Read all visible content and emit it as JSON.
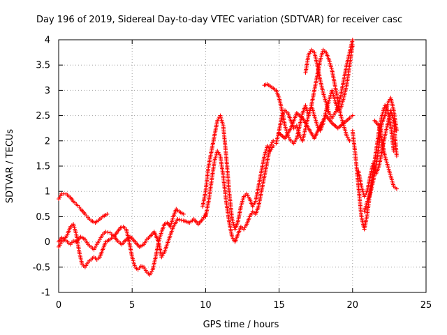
{
  "chart_data": {
    "type": "scatter",
    "title": "Day 196 of 2019, Sidereal Day-to-day VTEC variation (SDTVAR) for receiver casc",
    "xlabel": "GPS time / hours",
    "ylabel": "SDTVAR / TECUs",
    "xlim": [
      0,
      25
    ],
    "ylim": [
      -1,
      4
    ],
    "x_ticks": [
      0,
      5,
      10,
      15,
      20,
      25
    ],
    "y_ticks": [
      -1,
      -0.5,
      0,
      0.5,
      1,
      1.5,
      2,
      2.5,
      3,
      3.5,
      4
    ],
    "x_tick_labels": [
      "0",
      "5",
      "10",
      "15",
      "20",
      "25"
    ],
    "y_tick_labels": [
      "-1",
      "-0.5",
      "0",
      "0.5",
      "1",
      "1.5",
      "2",
      "2.5",
      "3",
      "3.5",
      "4"
    ],
    "grid": true,
    "marker": "plus",
    "color": "#ff0000",
    "series": [
      {
        "values": [
          [
            0.0,
            0.85
          ],
          [
            0.2,
            0.95
          ],
          [
            0.5,
            0.95
          ],
          [
            0.8,
            0.88
          ],
          [
            1.0,
            0.8
          ],
          [
            1.3,
            0.72
          ],
          [
            1.5,
            0.65
          ],
          [
            1.8,
            0.55
          ],
          [
            2.0,
            0.48
          ],
          [
            2.2,
            0.42
          ],
          [
            2.5,
            0.38
          ],
          [
            2.8,
            0.45
          ],
          [
            3.0,
            0.5
          ],
          [
            3.3,
            0.55
          ]
        ]
      },
      {
        "values": [
          [
            0.0,
            0.0
          ],
          [
            0.2,
            0.08
          ],
          [
            0.4,
            0.05
          ],
          [
            0.6,
            0.15
          ],
          [
            0.8,
            0.3
          ],
          [
            1.0,
            0.35
          ],
          [
            1.2,
            0.15
          ],
          [
            1.4,
            -0.2
          ],
          [
            1.6,
            -0.45
          ],
          [
            1.8,
            -0.5
          ],
          [
            2.0,
            -0.4
          ],
          [
            2.2,
            -0.35
          ],
          [
            2.4,
            -0.3
          ],
          [
            2.6,
            -0.35
          ],
          [
            2.8,
            -0.3
          ],
          [
            3.0,
            -0.15
          ],
          [
            3.2,
            0.0
          ],
          [
            3.5,
            0.05
          ],
          [
            3.8,
            0.12
          ],
          [
            4.0,
            0.2
          ],
          [
            4.2,
            0.28
          ],
          [
            4.4,
            0.3
          ],
          [
            4.6,
            0.25
          ],
          [
            4.8,
            0.0
          ],
          [
            5.0,
            -0.3
          ],
          [
            5.2,
            -0.5
          ],
          [
            5.4,
            -0.55
          ],
          [
            5.6,
            -0.48
          ],
          [
            5.8,
            -0.5
          ],
          [
            6.0,
            -0.6
          ],
          [
            6.2,
            -0.65
          ],
          [
            6.4,
            -0.55
          ],
          [
            6.6,
            -0.3
          ],
          [
            6.8,
            0.0
          ],
          [
            7.0,
            0.2
          ],
          [
            7.2,
            0.35
          ],
          [
            7.4,
            0.38
          ],
          [
            7.6,
            0.3
          ],
          [
            7.8,
            0.5
          ],
          [
            8.0,
            0.65
          ],
          [
            8.2,
            0.6
          ],
          [
            8.5,
            0.55
          ]
        ]
      },
      {
        "values": [
          [
            0.0,
            -0.1
          ],
          [
            0.2,
            0.0
          ],
          [
            0.4,
            0.05
          ],
          [
            0.6,
            0.0
          ],
          [
            0.8,
            -0.05
          ],
          [
            1.0,
            0.02
          ],
          [
            1.2,
            0.0
          ],
          [
            1.5,
            0.1
          ],
          [
            1.8,
            0.05
          ],
          [
            2.0,
            -0.05
          ],
          [
            2.2,
            -0.1
          ],
          [
            2.4,
            -0.15
          ],
          [
            2.6,
            -0.05
          ],
          [
            2.8,
            0.05
          ],
          [
            3.0,
            0.15
          ],
          [
            3.2,
            0.2
          ],
          [
            3.5,
            0.18
          ],
          [
            3.8,
            0.1
          ],
          [
            4.0,
            0.02
          ],
          [
            4.3,
            -0.05
          ],
          [
            4.6,
            0.05
          ],
          [
            4.9,
            0.1
          ],
          [
            5.2,
            0.0
          ],
          [
            5.5,
            -0.1
          ],
          [
            5.8,
            -0.05
          ],
          [
            6.0,
            0.05
          ],
          [
            6.2,
            0.1
          ],
          [
            6.5,
            0.2
          ],
          [
            6.8,
            0.0
          ],
          [
            7.0,
            -0.3
          ],
          [
            7.2,
            -0.2
          ],
          [
            7.5,
            0.05
          ],
          [
            7.8,
            0.3
          ],
          [
            8.1,
            0.45
          ],
          [
            8.5,
            0.42
          ],
          [
            8.9,
            0.38
          ],
          [
            9.2,
            0.45
          ],
          [
            9.5,
            0.35
          ],
          [
            9.8,
            0.45
          ],
          [
            10.0,
            0.55
          ]
        ]
      },
      {
        "values": [
          [
            10.0,
            0.5
          ],
          [
            10.2,
            0.8
          ],
          [
            10.4,
            1.2
          ],
          [
            10.6,
            1.6
          ],
          [
            10.8,
            1.8
          ],
          [
            11.0,
            1.7
          ],
          [
            11.2,
            1.3
          ],
          [
            11.4,
            0.8
          ],
          [
            11.6,
            0.4
          ],
          [
            11.8,
            0.1
          ],
          [
            12.0,
            0.0
          ],
          [
            12.2,
            0.15
          ],
          [
            12.4,
            0.3
          ],
          [
            12.6,
            0.25
          ],
          [
            12.8,
            0.35
          ],
          [
            13.0,
            0.5
          ],
          [
            13.2,
            0.6
          ],
          [
            13.4,
            0.55
          ],
          [
            13.6,
            0.7
          ],
          [
            13.8,
            1.0
          ],
          [
            14.0,
            1.3
          ],
          [
            14.2,
            1.6
          ],
          [
            14.4,
            1.9
          ],
          [
            14.6,
            2.0
          ]
        ]
      },
      {
        "values": [
          [
            9.8,
            0.7
          ],
          [
            10.0,
            1.0
          ],
          [
            10.2,
            1.5
          ],
          [
            10.4,
            1.8
          ],
          [
            10.6,
            2.1
          ],
          [
            10.8,
            2.4
          ],
          [
            11.0,
            2.5
          ],
          [
            11.2,
            2.3
          ],
          [
            11.4,
            1.7
          ],
          [
            11.6,
            1.0
          ],
          [
            11.8,
            0.45
          ],
          [
            12.0,
            0.25
          ],
          [
            12.2,
            0.4
          ],
          [
            12.4,
            0.7
          ],
          [
            12.6,
            0.9
          ],
          [
            12.8,
            0.95
          ],
          [
            13.0,
            0.85
          ],
          [
            13.2,
            0.7
          ],
          [
            13.4,
            0.8
          ],
          [
            13.6,
            1.1
          ],
          [
            13.8,
            1.4
          ],
          [
            14.0,
            1.7
          ],
          [
            14.2,
            1.9
          ],
          [
            14.4,
            1.8
          ],
          [
            14.6,
            1.9
          ]
        ]
      },
      {
        "values": [
          [
            14.0,
            3.1
          ],
          [
            14.2,
            3.12
          ],
          [
            14.4,
            3.08
          ],
          [
            14.8,
            3.0
          ],
          [
            15.0,
            2.85
          ],
          [
            15.2,
            2.6
          ],
          [
            15.4,
            2.3
          ],
          [
            15.6,
            2.1
          ],
          [
            15.8,
            2.0
          ],
          [
            16.0,
            1.95
          ],
          [
            16.2,
            2.05
          ],
          [
            16.4,
            2.3
          ],
          [
            16.6,
            2.55
          ],
          [
            16.8,
            2.7
          ],
          [
            17.0,
            2.5
          ],
          [
            17.2,
            2.7
          ],
          [
            17.4,
            3.0
          ],
          [
            17.6,
            3.3
          ],
          [
            17.8,
            3.6
          ],
          [
            18.0,
            3.8
          ],
          [
            18.2,
            3.75
          ],
          [
            18.4,
            3.6
          ],
          [
            18.6,
            3.4
          ],
          [
            18.8,
            3.1
          ],
          [
            19.0,
            2.8
          ],
          [
            19.2,
            2.5
          ],
          [
            19.4,
            2.3
          ],
          [
            19.6,
            2.1
          ],
          [
            19.8,
            2.0
          ]
        ]
      },
      {
        "values": [
          [
            14.8,
            1.95
          ],
          [
            15.0,
            2.2
          ],
          [
            15.2,
            2.5
          ],
          [
            15.4,
            2.6
          ],
          [
            15.6,
            2.55
          ],
          [
            15.8,
            2.4
          ],
          [
            16.0,
            2.25
          ],
          [
            16.2,
            2.3
          ],
          [
            16.4,
            2.1
          ],
          [
            16.6,
            2.0
          ],
          [
            16.8,
            2.25
          ],
          [
            17.0,
            2.5
          ],
          [
            17.2,
            2.7
          ],
          [
            17.4,
            2.5
          ],
          [
            17.6,
            2.3
          ],
          [
            17.8,
            2.2
          ],
          [
            18.0,
            2.35
          ],
          [
            18.2,
            2.6
          ],
          [
            18.4,
            2.8
          ],
          [
            18.6,
            3.0
          ],
          [
            18.8,
            2.8
          ],
          [
            19.0,
            2.6
          ],
          [
            19.2,
            2.65
          ],
          [
            19.4,
            2.85
          ],
          [
            19.6,
            3.1
          ],
          [
            19.8,
            3.5
          ],
          [
            20.0,
            3.9
          ]
        ]
      },
      {
        "values": [
          [
            16.8,
            3.35
          ],
          [
            17.0,
            3.7
          ],
          [
            17.2,
            3.8
          ],
          [
            17.4,
            3.75
          ],
          [
            17.6,
            3.5
          ],
          [
            17.8,
            3.2
          ],
          [
            18.0,
            2.95
          ],
          [
            18.2,
            2.75
          ],
          [
            18.4,
            2.55
          ],
          [
            18.6,
            2.45
          ],
          [
            18.8,
            2.55
          ],
          [
            19.0,
            2.65
          ],
          [
            19.2,
            2.9
          ],
          [
            19.4,
            3.2
          ],
          [
            19.6,
            3.5
          ],
          [
            19.8,
            3.75
          ],
          [
            20.0,
            4.0
          ]
        ]
      },
      {
        "values": [
          [
            15.0,
            2.15
          ],
          [
            15.4,
            2.05
          ],
          [
            15.8,
            2.25
          ],
          [
            16.2,
            2.55
          ],
          [
            16.6,
            2.45
          ],
          [
            17.0,
            2.25
          ],
          [
            17.4,
            2.05
          ],
          [
            17.8,
            2.3
          ],
          [
            18.2,
            2.5
          ],
          [
            18.6,
            2.35
          ],
          [
            19.0,
            2.25
          ],
          [
            19.4,
            2.35
          ],
          [
            19.8,
            2.45
          ],
          [
            20.0,
            2.5
          ]
        ]
      },
      {
        "values": [
          [
            20.0,
            2.2
          ],
          [
            20.2,
            1.7
          ],
          [
            20.4,
            1.1
          ],
          [
            20.6,
            0.5
          ],
          [
            20.8,
            0.25
          ],
          [
            21.0,
            0.55
          ],
          [
            21.2,
            1.0
          ],
          [
            21.4,
            1.4
          ],
          [
            21.6,
            1.8
          ],
          [
            21.8,
            2.2
          ],
          [
            22.0,
            2.5
          ],
          [
            22.2,
            2.7
          ],
          [
            22.4,
            2.6
          ],
          [
            22.6,
            2.3
          ],
          [
            22.8,
            1.8
          ]
        ]
      },
      {
        "values": [
          [
            20.4,
            1.4
          ],
          [
            20.6,
            1.1
          ],
          [
            20.8,
            0.9
          ],
          [
            21.0,
            1.0
          ],
          [
            21.2,
            1.3
          ],
          [
            21.4,
            1.55
          ],
          [
            21.6,
            1.35
          ],
          [
            21.8,
            1.5
          ],
          [
            22.0,
            1.8
          ],
          [
            22.2,
            2.1
          ],
          [
            22.4,
            2.35
          ],
          [
            22.6,
            2.6
          ],
          [
            22.8,
            2.4
          ],
          [
            23.0,
            1.7
          ]
        ]
      },
      {
        "values": [
          [
            21.5,
            2.4
          ],
          [
            21.8,
            2.3
          ],
          [
            22.0,
            2.0
          ],
          [
            22.2,
            1.7
          ],
          [
            22.4,
            1.5
          ],
          [
            22.6,
            1.3
          ],
          [
            22.8,
            1.1
          ],
          [
            23.0,
            1.05
          ]
        ]
      },
      {
        "values": [
          [
            20.8,
            0.6
          ],
          [
            21.0,
            0.8
          ],
          [
            21.2,
            0.95
          ],
          [
            21.4,
            1.2
          ],
          [
            21.6,
            1.5
          ],
          [
            21.8,
            1.9
          ],
          [
            22.0,
            2.35
          ],
          [
            22.2,
            2.5
          ],
          [
            22.4,
            2.75
          ],
          [
            22.6,
            2.85
          ],
          [
            22.8,
            2.6
          ],
          [
            23.0,
            2.2
          ]
        ]
      }
    ]
  }
}
